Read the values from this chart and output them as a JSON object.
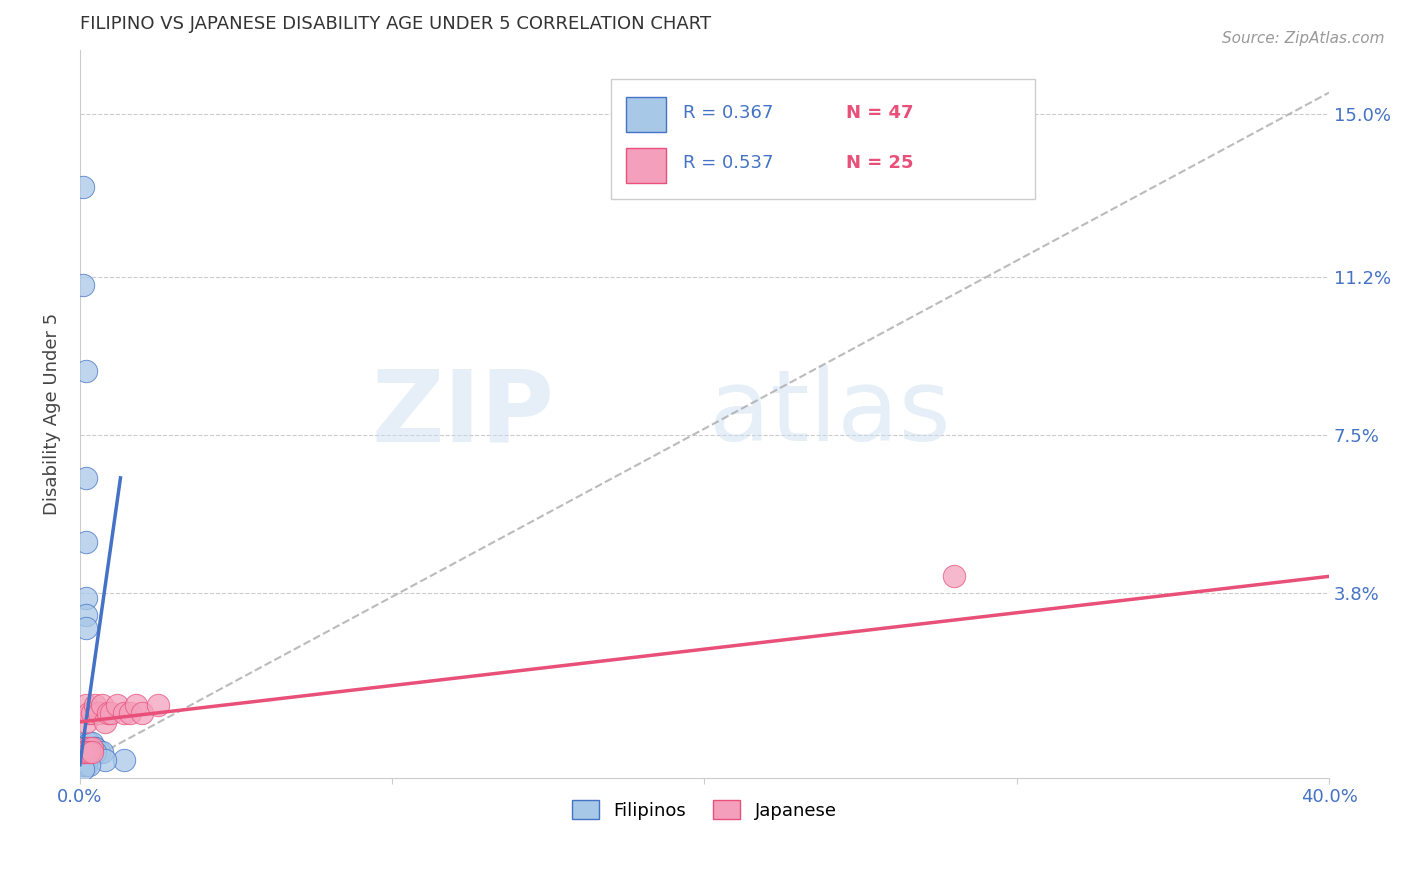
{
  "title": "FILIPINO VS JAPANESE DISABILITY AGE UNDER 5 CORRELATION CHART",
  "source": "Source: ZipAtlas.com",
  "ylabel": "Disability Age Under 5",
  "ytick_labels": [
    "15.0%",
    "11.2%",
    "7.5%",
    "3.8%"
  ],
  "ytick_values": [
    0.15,
    0.112,
    0.075,
    0.038
  ],
  "xtick_labels": [
    "0.0%",
    "40.0%"
  ],
  "xtick_values": [
    0.0,
    0.4
  ],
  "xlim": [
    0.0,
    0.4
  ],
  "ylim": [
    -0.005,
    0.165
  ],
  "r_filipino": "0.367",
  "n_filipino": "47",
  "r_japanese": "0.537",
  "n_japanese": "25",
  "legend_filipinos": "Filipinos",
  "legend_japanese": "Japanese",
  "color_filipino": "#a8c8e8",
  "color_japanese": "#f4a0bc",
  "color_filipino_line": "#4472c4",
  "color_japanese_line": "#e8507a",
  "color_r_text": "#4472c4",
  "color_n_text": "#e8507a",
  "fil_line_x0": 0.0,
  "fil_line_y0": -0.002,
  "fil_line_x1": 0.013,
  "fil_line_y1": 0.065,
  "dashed_line_x0": 0.0,
  "dashed_line_y0": -0.002,
  "dashed_line_x1": 0.4,
  "dashed_line_y1": 0.155,
  "jap_line_x0": 0.0,
  "jap_line_y0": 0.008,
  "jap_line_x1": 0.4,
  "jap_line_y1": 0.042,
  "filipino_x": [
    0.001,
    0.001,
    0.002,
    0.002,
    0.002,
    0.002,
    0.002,
    0.002,
    0.002,
    0.003,
    0.003,
    0.003,
    0.003,
    0.003,
    0.003,
    0.003,
    0.004,
    0.004,
    0.004,
    0.004,
    0.005,
    0.005,
    0.005,
    0.006,
    0.006,
    0.007,
    0.001,
    0.001,
    0.001,
    0.001,
    0.002,
    0.002,
    0.003,
    0.003,
    0.004,
    0.004,
    0.005,
    0.001,
    0.001,
    0.002,
    0.002,
    0.014,
    0.008,
    0.001,
    0.002,
    0.003,
    0.001
  ],
  "filipino_y": [
    0.133,
    0.11,
    0.09,
    0.065,
    0.05,
    0.037,
    0.033,
    0.03,
    0.003,
    0.001,
    0.001,
    0.001,
    0.002,
    0.002,
    0.003,
    0.003,
    0.001,
    0.001,
    0.002,
    0.003,
    0.001,
    0.002,
    0.002,
    0.001,
    0.001,
    0.001,
    0.001,
    0.001,
    0.002,
    0.002,
    0.001,
    0.001,
    0.001,
    0.001,
    0.001,
    0.001,
    0.001,
    -0.001,
    -0.001,
    -0.001,
    -0.001,
    -0.001,
    -0.001,
    -0.002,
    -0.002,
    -0.002,
    -0.003
  ],
  "japanese_x": [
    0.001,
    0.002,
    0.002,
    0.002,
    0.003,
    0.003,
    0.004,
    0.004,
    0.005,
    0.006,
    0.007,
    0.008,
    0.009,
    0.01,
    0.012,
    0.014,
    0.016,
    0.018,
    0.02,
    0.025,
    0.28,
    0.001,
    0.002,
    0.003,
    0.004
  ],
  "japanese_y": [
    0.001,
    0.008,
    0.012,
    0.002,
    0.01,
    0.002,
    0.01,
    0.002,
    0.012,
    0.01,
    0.012,
    0.008,
    0.01,
    0.01,
    0.012,
    0.01,
    0.01,
    0.012,
    0.01,
    0.012,
    0.042,
    0.001,
    0.001,
    0.001,
    0.001
  ]
}
